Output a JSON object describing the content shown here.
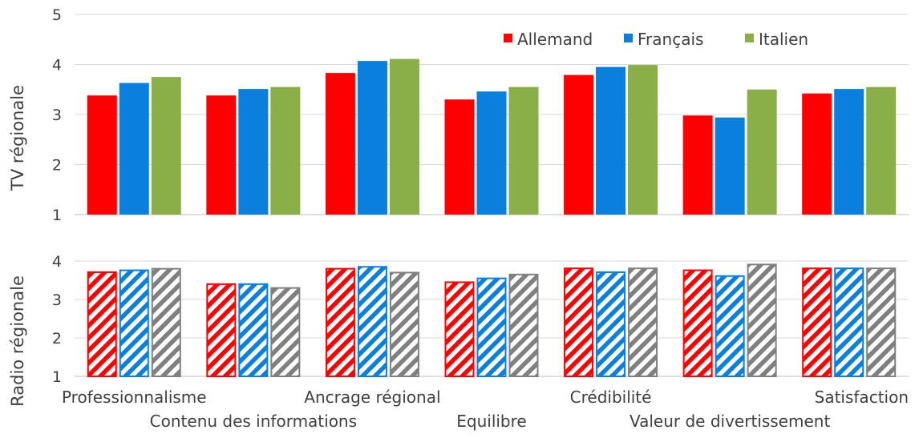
{
  "chart_data": [
    {
      "type": "bar",
      "ylabel": "TV régionale",
      "ylim": [
        1,
        5
      ],
      "yticks": [
        1,
        2,
        3,
        4,
        5
      ],
      "grid": true,
      "legend_position": "top-right",
      "categories": [
        "Professionnalisme",
        "Contenu des informations",
        "Ancrage régional",
        "Equilibre",
        "Crédibilité",
        "Valeur de divertissement",
        "Satisfaction"
      ],
      "series": [
        {
          "name": "Allemand",
          "color": "#ff0000",
          "values": [
            3.38,
            3.38,
            3.83,
            3.3,
            3.79,
            2.98,
            3.42
          ]
        },
        {
          "name": "Français",
          "color": "#0a7fde",
          "values": [
            3.63,
            3.51,
            4.07,
            3.46,
            3.95,
            2.94,
            3.51
          ]
        },
        {
          "name": "Italien",
          "color": "#8aae48",
          "values": [
            3.75,
            3.55,
            4.11,
            3.55,
            3.99,
            3.5,
            3.55
          ]
        }
      ]
    },
    {
      "type": "bar",
      "ylabel": "Radio régionale",
      "ylim": [
        1,
        4
      ],
      "yticks": [
        1,
        2,
        3,
        4
      ],
      "grid": true,
      "pattern": "diagonal-hatch",
      "categories": [
        "Professionnalisme",
        "Contenu des informations",
        "Ancrage régional",
        "Equilibre",
        "Crédibilité",
        "Valeur de divertissement",
        "Satisfaction"
      ],
      "series": [
        {
          "name": "Allemand",
          "color": "#ff0000",
          "values": [
            3.73,
            3.42,
            3.82,
            3.47,
            3.83,
            3.78,
            3.83
          ]
        },
        {
          "name": "Français",
          "color": "#0a7fde",
          "values": [
            3.78,
            3.42,
            3.87,
            3.57,
            3.73,
            3.63,
            3.83
          ]
        },
        {
          "name": "Italien",
          "color": "#808080",
          "values": [
            3.82,
            3.32,
            3.72,
            3.67,
            3.83,
            3.93,
            3.83
          ]
        }
      ]
    }
  ]
}
